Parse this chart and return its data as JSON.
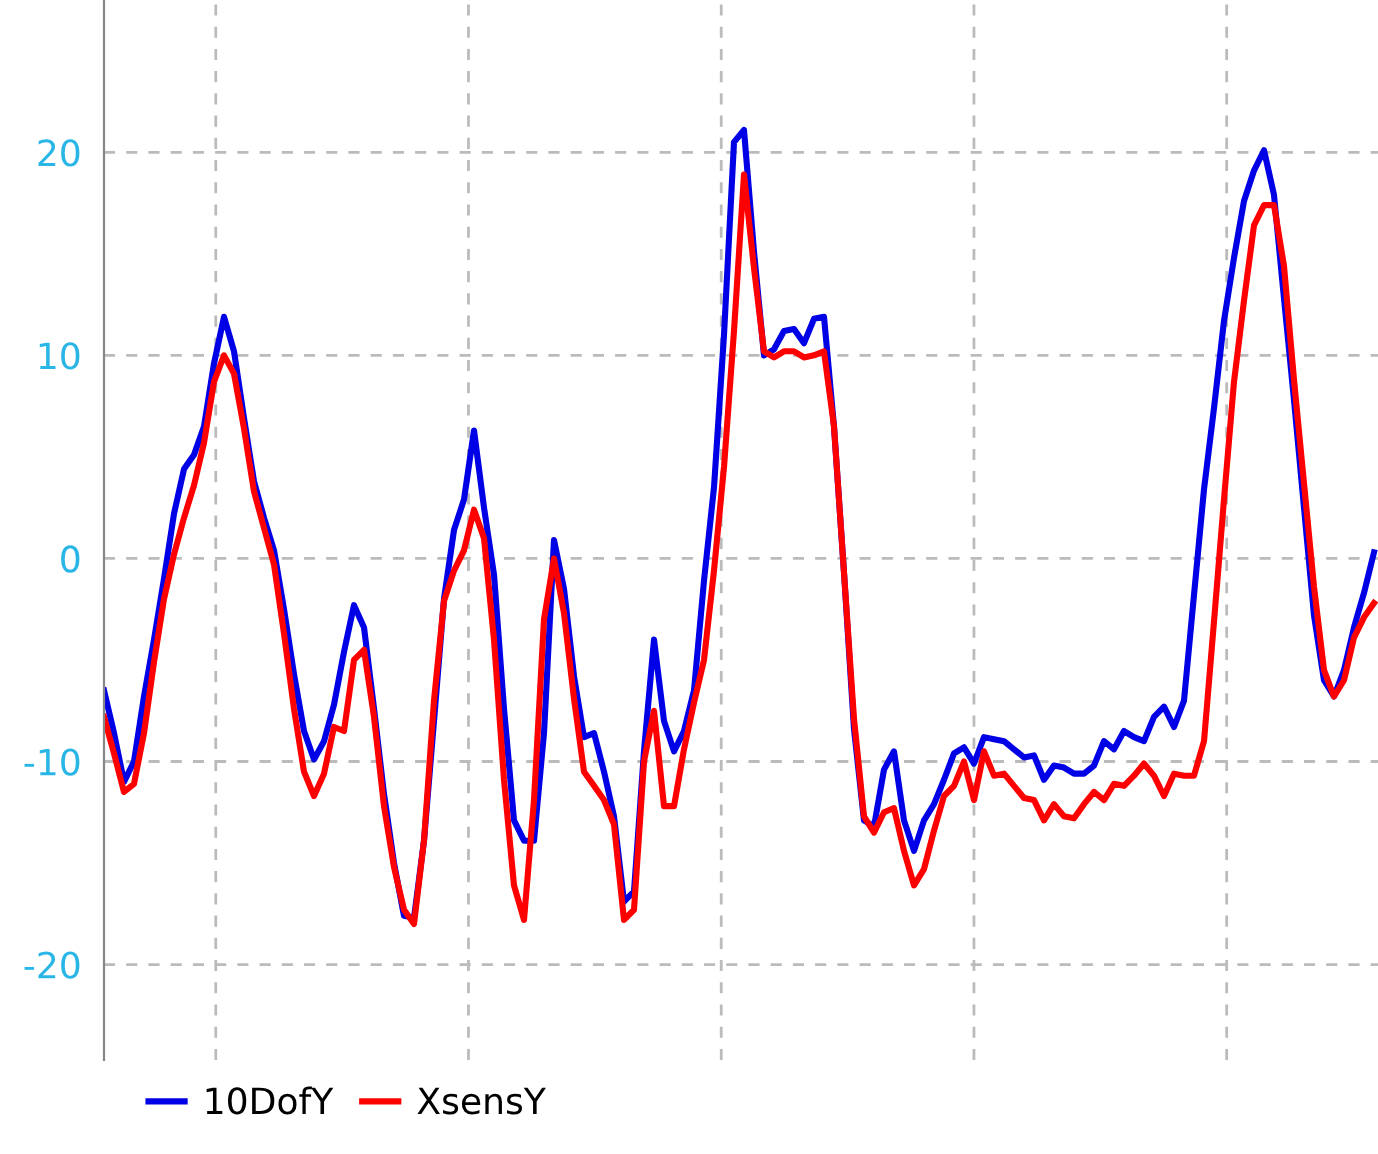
{
  "chart_data": {
    "type": "line",
    "categories": [
      null,
      null,
      null,
      null,
      null,
      null,
      null,
      null,
      null,
      null,
      null,
      null,
      null,
      null,
      null,
      null,
      null,
      null,
      null,
      null,
      null,
      null,
      null,
      null,
      null,
      null,
      null,
      null,
      null,
      null,
      null,
      null,
      null,
      null,
      null,
      null,
      null,
      null,
      null,
      null,
      null,
      null,
      null,
      null,
      null,
      null,
      null,
      null,
      null,
      null,
      null,
      null,
      null,
      null,
      null,
      null,
      null,
      null,
      null,
      null,
      null,
      null,
      null,
      null,
      null,
      null,
      null,
      null,
      null,
      null,
      null,
      null,
      null,
      null,
      null,
      null,
      null,
      null,
      null,
      null,
      null,
      null,
      null,
      null,
      null,
      null,
      null,
      null,
      null,
      null,
      null,
      null,
      null,
      null,
      null,
      null,
      null,
      null,
      null,
      null,
      null,
      null,
      null,
      null,
      null,
      null,
      null,
      null,
      null,
      null,
      null,
      null,
      null,
      null,
      null,
      null,
      null,
      null,
      null,
      null,
      null,
      null,
      null,
      null,
      null,
      null,
      null,
      null
    ],
    "series": [
      {
        "name": "10DofY",
        "color": "#0000e6",
        "values": [
          -6.5,
          -8.6,
          -11,
          -10,
          -6.8,
          -4,
          -1,
          2.2,
          4.4,
          5.1,
          6.5,
          9.6,
          11.9,
          10.2,
          6.9,
          3.8,
          2,
          0.4,
          -2.5,
          -5.7,
          -8.5,
          -9.9,
          -9,
          -7.2,
          -4.6,
          -2.3,
          -3.4,
          -7.4,
          -11.6,
          -15,
          -17.6,
          -17.7,
          -13.9,
          -8,
          -2,
          1.4,
          2.9,
          6.3,
          2.5,
          -0.8,
          -7.4,
          -12.9,
          -13.9,
          -13.9,
          -8.6,
          0.9,
          -1.5,
          -5.8,
          -8.8,
          -8.6,
          -10.5,
          -12.7,
          -16.9,
          -16.4,
          -9.5,
          -4,
          -8,
          -9.5,
          -8.5,
          -6.5,
          -1.1,
          3.5,
          11,
          20.5,
          21.1,
          15.1,
          10,
          10.3,
          11.2,
          11.3,
          10.6,
          11.8,
          11.9,
          6.5,
          -0.7,
          -8.4,
          -12.9,
          -13.2,
          -10.4,
          -9.5,
          -12.9,
          -14.4,
          -12.9,
          -12.1,
          -10.9,
          -9.6,
          -9.3,
          -10.1,
          -8.8,
          -8.9,
          -9,
          -9.4,
          -9.8,
          -9.7,
          -10.9,
          -10.2,
          -10.3,
          -10.6,
          -10.6,
          -10.2,
          -9,
          -9.4,
          -8.5,
          -8.8,
          -9,
          -7.8,
          -7.3,
          -8.3,
          -7,
          -1.8,
          3.4,
          7.4,
          11.7,
          14.8,
          17.6,
          19.1,
          20.1,
          17.9,
          12.8,
          7.8,
          2.5,
          -2.8,
          -6,
          -6.8,
          -5.5,
          -3.4,
          -1.7,
          0.3
        ]
      },
      {
        "name": "XsensY",
        "color": "#ff0000",
        "values": [
          -7.8,
          -9.6,
          -11.5,
          -11.1,
          -8.6,
          -5.1,
          -2,
          0.2,
          2,
          3.6,
          5.7,
          8.7,
          10,
          9.1,
          6.4,
          3.3,
          1.5,
          -0.3,
          -3.7,
          -7.4,
          -10.5,
          -11.7,
          -10.6,
          -8.3,
          -8.5,
          -5,
          -4.5,
          -7.8,
          -12.2,
          -15.2,
          -17.3,
          -18,
          -13.9,
          -7,
          -2.1,
          -0.6,
          0.4,
          2.4,
          1,
          -4,
          -10.9,
          -16.1,
          -17.8,
          -11.9,
          -3,
          0,
          -2.7,
          -6.9,
          -10.5,
          -11.2,
          -11.9,
          -13.1,
          -17.8,
          -17.3,
          -10,
          -7.5,
          -12.2,
          -12.2,
          -9.4,
          -7.1,
          -5,
          -0.6,
          4.5,
          11.2,
          18.9,
          14.3,
          10.2,
          9.9,
          10.2,
          10.2,
          9.9,
          10,
          10.2,
          6.5,
          -0.7,
          -7.9,
          -12.7,
          -13.5,
          -12.5,
          -12.3,
          -14.4,
          -16.1,
          -15.3,
          -13.4,
          -11.7,
          -11.2,
          -10,
          -11.9,
          -9.5,
          -10.7,
          -10.6,
          -11.2,
          -11.8,
          -11.9,
          -12.9,
          -12.1,
          -12.7,
          -12.8,
          -12.1,
          -11.5,
          -11.9,
          -11.1,
          -11.2,
          -10.7,
          -10.1,
          -10.7,
          -11.7,
          -10.6,
          -10.7,
          -10.7,
          -9,
          -3.1,
          2.9,
          8.7,
          12.7,
          16.4,
          17.4,
          17.4,
          14.4,
          8.8,
          3.7,
          -1.4,
          -5.5,
          -6.8,
          -6,
          -3.9,
          -2.9,
          -2.2
        ]
      }
    ],
    "ylim": [
      -24.7,
      27.5
    ],
    "yticks": [
      -20,
      -10,
      0,
      10,
      20
    ],
    "tick_labels": "y",
    "grid": true,
    "legend": "bottom left",
    "marker": "none",
    "line_style": "solid"
  }
}
